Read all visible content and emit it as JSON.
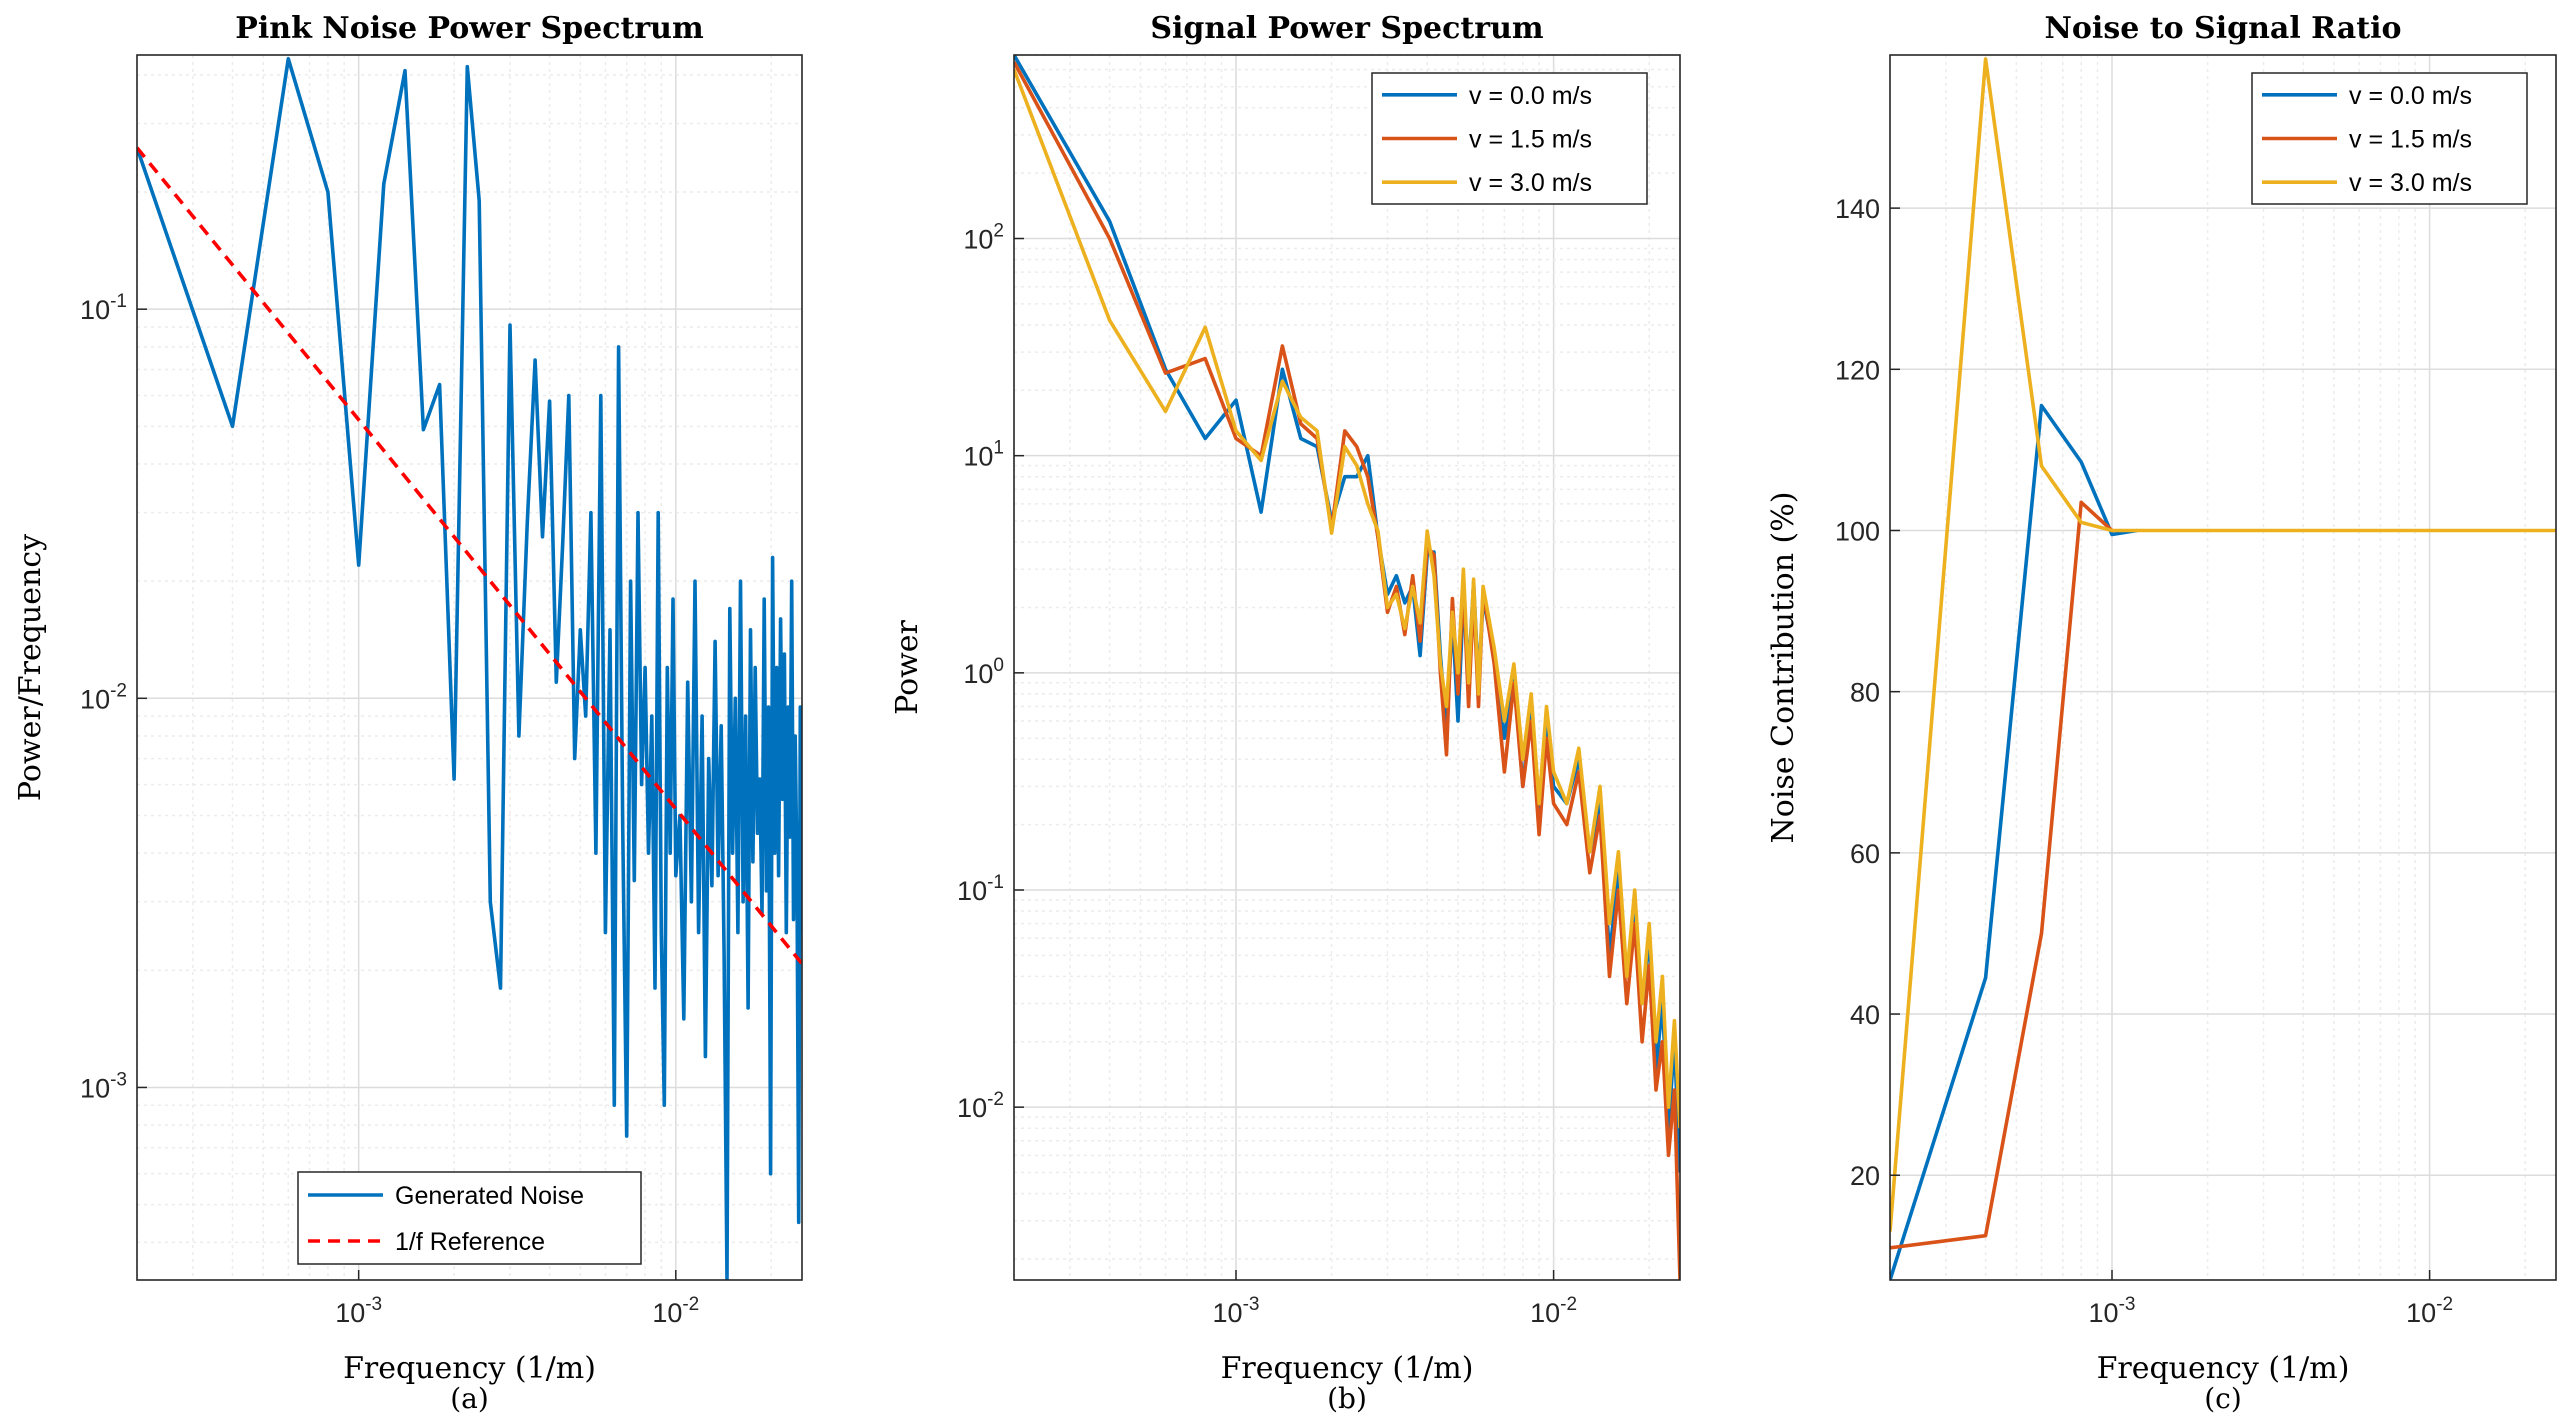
{
  "colors": {
    "blue": "#0072BD",
    "orange": "#D95319",
    "yellow": "#EDB120",
    "red": "#FF0000",
    "grid_major": "#dcdcdc",
    "grid_minor": "#ececec",
    "axis": "#262626"
  },
  "chart_data": [
    {
      "panel": "a",
      "sublabel": "(a)",
      "type": "line",
      "title": "Pink Noise Power Spectrum",
      "xlabel": "Frequency (1/m)",
      "ylabel": "Power/Frequency",
      "xscale": "log",
      "yscale": "log",
      "xlim": [
        0.0002,
        0.025
      ],
      "ylim": [
        0.00032,
        0.45
      ],
      "xticks": [
        {
          "value": 0.001,
          "base": "10",
          "exp": "-3"
        },
        {
          "value": 0.01,
          "base": "10",
          "exp": "-2"
        }
      ],
      "yticks": [
        {
          "value": 0.001,
          "base": "10",
          "exp": "-3"
        },
        {
          "value": 0.01,
          "base": "10",
          "exp": "-2"
        },
        {
          "value": 0.1,
          "base": "10",
          "exp": "-1"
        }
      ],
      "grid": true,
      "legend_position": "bottom-center",
      "series": [
        {
          "name": "Generated Noise",
          "color": "#0072BD",
          "style": "solid",
          "x": [
            0.0002,
            0.0004,
            0.0006,
            0.0008,
            0.001,
            0.0012,
            0.0014,
            0.0016,
            0.0018,
            0.002,
            0.0022,
            0.0024,
            0.0026,
            0.0028,
            0.003,
            0.0032,
            0.0034,
            0.0036,
            0.0038,
            0.004,
            0.0042,
            0.0044,
            0.0046,
            0.0048,
            0.005,
            0.0052,
            0.0054,
            0.0056,
            0.0058,
            0.006,
            0.0062,
            0.0064,
            0.0066,
            0.0068,
            0.007,
            0.0072,
            0.0074,
            0.0076,
            0.0078,
            0.008,
            0.0082,
            0.0084,
            0.0086,
            0.0088,
            0.009,
            0.0092,
            0.0094,
            0.0096,
            0.0098,
            0.01,
            0.0103,
            0.0106,
            0.0109,
            0.0112,
            0.0115,
            0.0118,
            0.0121,
            0.0124,
            0.0127,
            0.013,
            0.0133,
            0.0136,
            0.0139,
            0.0142,
            0.0145,
            0.0148,
            0.0151,
            0.0154,
            0.0157,
            0.016,
            0.0163,
            0.0166,
            0.0169,
            0.0172,
            0.0175,
            0.0178,
            0.0181,
            0.0184,
            0.0187,
            0.019,
            0.0193,
            0.0196,
            0.0199,
            0.0202,
            0.0205,
            0.0208,
            0.0211,
            0.0214,
            0.0217,
            0.022,
            0.0223,
            0.0226,
            0.0229,
            0.0232,
            0.0235,
            0.0238,
            0.0241,
            0.0244,
            0.0247,
            0.025
          ],
          "y": [
            0.26,
            0.05,
            0.44,
            0.2,
            0.022,
            0.21,
            0.41,
            0.049,
            0.064,
            0.0062,
            0.42,
            0.19,
            0.003,
            0.0018,
            0.091,
            0.008,
            0.028,
            0.074,
            0.026,
            0.058,
            0.011,
            0.025,
            0.06,
            0.007,
            0.015,
            0.009,
            0.03,
            0.004,
            0.06,
            0.0025,
            0.015,
            0.0009,
            0.08,
            0.0047,
            0.00075,
            0.02,
            0.0034,
            0.03,
            0.006,
            0.012,
            0.004,
            0.009,
            0.0018,
            0.03,
            0.0025,
            0.0009,
            0.012,
            0.004,
            0.018,
            0.0035,
            0.005,
            0.0015,
            0.011,
            0.003,
            0.02,
            0.0025,
            0.009,
            0.0012,
            0.007,
            0.0033,
            0.014,
            0.0035,
            0.0085,
            0.0022,
            0.00032,
            0.017,
            0.004,
            0.01,
            0.0025,
            0.02,
            0.003,
            0.009,
            0.0016,
            0.015,
            0.0038,
            0.012,
            0.0045,
            0.0062,
            0.0028,
            0.018,
            0.0032,
            0.0095,
            0.0006,
            0.023,
            0.004,
            0.012,
            0.0035,
            0.016,
            0.0055,
            0.013,
            0.0025,
            0.0095,
            0.0044,
            0.02,
            0.0027,
            0.008,
            0.0035,
            0.00045,
            0.0095,
            0.0025
          ]
        },
        {
          "name": "1/f Reference",
          "color": "#FF0000",
          "style": "dashed",
          "x": [
            0.0002,
            0.025
          ],
          "y": [
            0.26,
            0.00208
          ]
        }
      ]
    },
    {
      "panel": "b",
      "sublabel": "(b)",
      "type": "line",
      "title": "Signal Power Spectrum",
      "xlabel": "Frequency (1/m)",
      "ylabel": "Power",
      "xscale": "log",
      "yscale": "log",
      "xlim": [
        0.0002,
        0.025
      ],
      "ylim": [
        0.0016,
        700
      ],
      "xticks": [
        {
          "value": 0.001,
          "base": "10",
          "exp": "-3"
        },
        {
          "value": 0.01,
          "base": "10",
          "exp": "-2"
        }
      ],
      "yticks": [
        {
          "value": 0.01,
          "base": "10",
          "exp": "-2"
        },
        {
          "value": 0.1,
          "base": "10",
          "exp": "-1"
        },
        {
          "value": 1,
          "base": "10",
          "exp": "0"
        },
        {
          "value": 10,
          "base": "10",
          "exp": "1"
        },
        {
          "value": 100,
          "base": "10",
          "exp": "2"
        }
      ],
      "grid": true,
      "legend_position": "top-right",
      "series": [
        {
          "name": "v = 0.0 m/s",
          "color": "#0072BD",
          "x": [
            0.0002,
            0.0004,
            0.0006,
            0.0008,
            0.001,
            0.0012,
            0.0014,
            0.0016,
            0.0018,
            0.002,
            0.0022,
            0.0024,
            0.0026,
            0.0028,
            0.003,
            0.0032,
            0.0034,
            0.0036,
            0.0038,
            0.004,
            0.0042,
            0.0044,
            0.0046,
            0.0048,
            0.005,
            0.0052,
            0.0054,
            0.0056,
            0.0058,
            0.006,
            0.0065,
            0.007,
            0.0075,
            0.008,
            0.0085,
            0.009,
            0.0095,
            0.01,
            0.011,
            0.012,
            0.013,
            0.014,
            0.015,
            0.016,
            0.017,
            0.018,
            0.019,
            0.02,
            0.021,
            0.022,
            0.023,
            0.024,
            0.025
          ],
          "y": [
            700,
            120,
            25,
            12,
            18,
            5.5,
            25,
            12,
            11,
            5,
            8,
            8,
            10,
            4.2,
            2.3,
            2.8,
            2.1,
            2.5,
            1.2,
            3.5,
            3.6,
            1.2,
            0.55,
            1.8,
            0.6,
            2.2,
            1,
            2.6,
            0.9,
            2.2,
            1.2,
            0.5,
            1,
            0.3,
            0.7,
            0.2,
            0.6,
            0.3,
            0.25,
            0.4,
            0.15,
            0.25,
            0.05,
            0.12,
            0.04,
            0.08,
            0.03,
            0.06,
            0.015,
            0.03,
            0.008,
            0.02,
            0.005
          ]
        },
        {
          "name": "v = 1.5 m/s",
          "color": "#D95319",
          "x": [
            0.0002,
            0.0004,
            0.0006,
            0.0008,
            0.001,
            0.0012,
            0.0014,
            0.0016,
            0.0018,
            0.002,
            0.0022,
            0.0024,
            0.0026,
            0.0028,
            0.003,
            0.0032,
            0.0034,
            0.0036,
            0.0038,
            0.004,
            0.0042,
            0.0044,
            0.0046,
            0.0048,
            0.005,
            0.0052,
            0.0054,
            0.0056,
            0.0058,
            0.006,
            0.0065,
            0.007,
            0.0075,
            0.008,
            0.0085,
            0.009,
            0.0095,
            0.01,
            0.011,
            0.012,
            0.013,
            0.014,
            0.015,
            0.016,
            0.017,
            0.018,
            0.019,
            0.02,
            0.021,
            0.022,
            0.023,
            0.024,
            0.025
          ],
          "y": [
            650,
            100,
            24,
            28,
            12,
            10,
            32,
            14,
            12,
            4.6,
            13,
            11,
            8,
            4.2,
            1.9,
            2.5,
            1.5,
            2.8,
            1.4,
            3.8,
            3.5,
            1,
            0.42,
            2.2,
            0.8,
            2.6,
            0.7,
            2.3,
            0.7,
            2.4,
            1.1,
            0.35,
            0.9,
            0.3,
            0.6,
            0.18,
            0.5,
            0.25,
            0.2,
            0.35,
            0.12,
            0.22,
            0.04,
            0.1,
            0.03,
            0.07,
            0.02,
            0.045,
            0.012,
            0.02,
            0.006,
            0.012,
            0.0016
          ]
        },
        {
          "name": "v = 3.0 m/s",
          "color": "#EDB120",
          "x": [
            0.0002,
            0.0004,
            0.0006,
            0.0008,
            0.001,
            0.0012,
            0.0014,
            0.0016,
            0.0018,
            0.002,
            0.0022,
            0.0024,
            0.0026,
            0.0028,
            0.003,
            0.0032,
            0.0034,
            0.0036,
            0.0038,
            0.004,
            0.0042,
            0.0044,
            0.0046,
            0.0048,
            0.005,
            0.0052,
            0.0054,
            0.0056,
            0.0058,
            0.006,
            0.0065,
            0.007,
            0.0075,
            0.008,
            0.0085,
            0.009,
            0.0095,
            0.01,
            0.011,
            0.012,
            0.013,
            0.014,
            0.015,
            0.016,
            0.017,
            0.018,
            0.019,
            0.02,
            0.021,
            0.022,
            0.023,
            0.024,
            0.025
          ],
          "y": [
            600,
            42,
            16,
            39,
            13,
            9.5,
            22,
            15,
            13,
            4.4,
            11,
            9,
            6,
            4.5,
            2,
            2.3,
            1.6,
            2.5,
            1.7,
            4.5,
            2.8,
            1.1,
            0.7,
            1.9,
            1,
            3,
            0.9,
            2.7,
            0.8,
            2.5,
            1.3,
            0.6,
            1.1,
            0.4,
            0.8,
            0.25,
            0.7,
            0.35,
            0.25,
            0.45,
            0.15,
            0.3,
            0.07,
            0.15,
            0.04,
            0.1,
            0.03,
            0.07,
            0.02,
            0.04,
            0.01,
            0.025,
            0.008
          ]
        }
      ]
    },
    {
      "panel": "c",
      "sublabel": "(c)",
      "type": "line",
      "title": "Noise to Signal Ratio",
      "xlabel": "Frequency (1/m)",
      "ylabel": "Noise Contribution (%)",
      "xscale": "log",
      "yscale": "linear",
      "xlim": [
        0.0002,
        0.025
      ],
      "ylim": [
        7,
        159
      ],
      "xticks": [
        {
          "value": 0.001,
          "base": "10",
          "exp": "-3"
        },
        {
          "value": 0.01,
          "base": "10",
          "exp": "-2"
        }
      ],
      "yticks": [
        {
          "value": 20,
          "label": "20"
        },
        {
          "value": 40,
          "label": "40"
        },
        {
          "value": 60,
          "label": "60"
        },
        {
          "value": 80,
          "label": "80"
        },
        {
          "value": 100,
          "label": "100"
        },
        {
          "value": 120,
          "label": "120"
        },
        {
          "value": 140,
          "label": "140"
        }
      ],
      "grid": true,
      "legend_position": "top-right",
      "series": [
        {
          "name": "v = 0.0 m/s",
          "color": "#0072BD",
          "x": [
            0.0002,
            0.0004,
            0.0006,
            0.0008,
            0.001,
            0.0012
          ],
          "y": [
            7,
            44.5,
            115.5,
            108.5,
            99.5,
            100
          ]
        },
        {
          "name": "v = 1.5 m/s",
          "color": "#D95319",
          "x": [
            0.0002,
            0.0004,
            0.0006,
            0.0008,
            0.001
          ],
          "y": [
            11,
            12.5,
            50,
            103.5,
            100
          ]
        },
        {
          "name": "v = 3.0 m/s",
          "color": "#EDB120",
          "x": [
            0.0002,
            0.0004,
            0.0006,
            0.0008,
            0.001,
            0.0012,
            0.025
          ],
          "y": [
            13,
            158.5,
            108,
            101,
            100,
            100,
            100
          ]
        }
      ]
    }
  ]
}
